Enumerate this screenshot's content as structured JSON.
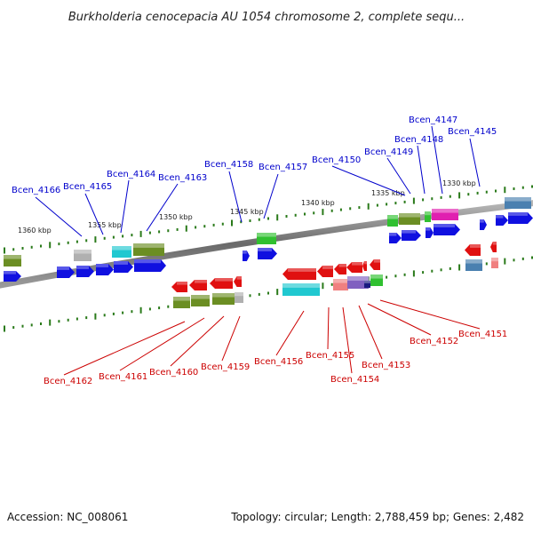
{
  "title": "Burkholderia cenocepacia AU 1054 chromosome 2, complete sequ...",
  "footer": {
    "accession": "Accession: NC_008061",
    "summary": "Topology: circular; Length: 2,788,459 bp; Genes: 2,482"
  },
  "scale_labels": [
    "1360 kbp",
    "1355 kbp",
    "1350 kbp",
    "1345 kbp",
    "1340 kbp",
    "1335 kbp",
    "1330 kbp"
  ],
  "forward_genes": [
    "Bcen_4166",
    "Bcen_4165",
    "Bcen_4164",
    "Bcen_4163",
    "Bcen_4158",
    "Bcen_4157",
    "Bcen_4150",
    "Bcen_4149",
    "Bcen_4148",
    "Bcen_4147",
    "Bcen_4145"
  ],
  "reverse_genes": [
    "Bcen_4162",
    "Bcen_4161",
    "Bcen_4160",
    "Bcen_4159",
    "Bcen_4156",
    "Bcen_4155",
    "Bcen_4154",
    "Bcen_4153",
    "Bcen_4152",
    "Bcen_4151"
  ],
  "colors": {
    "forward_label": "#0000cc",
    "reverse_label": "#cc0000",
    "forward_gene": "#1010e0",
    "reverse_gene": "#e01010",
    "tick": "#2a7a1a",
    "backbone": "#808080",
    "olive": "#6b8e23",
    "cyan": "#20c8d0",
    "green": "#30c030",
    "magenta": "#e020b0",
    "steel": "#4a80b0",
    "pink": "#f08080",
    "purple": "#8060c0",
    "gray": "#b0b0b0"
  }
}
